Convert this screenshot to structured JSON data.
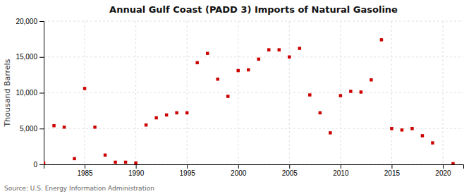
{
  "chart_data": {
    "type": "scatter",
    "title": "Annual Gulf Coast (PADD 3) Imports of Natural Gasoline",
    "ylabel": "Thousand Barrels",
    "source": "Source: U.S. Energy Information Administration",
    "color": "#cc0000",
    "marker": "square",
    "grid": true,
    "xlim": [
      1981,
      2022
    ],
    "xticks": [
      1985,
      1990,
      1995,
      2000,
      2005,
      2010,
      2015,
      2020
    ],
    "ylim": [
      0,
      20000
    ],
    "yticks": [
      {
        "value": 0,
        "label": "0"
      },
      {
        "value": 5000,
        "label": "5,000"
      },
      {
        "value": 10000,
        "label": "10,000"
      },
      {
        "value": 15000,
        "label": "15,000"
      },
      {
        "value": 20000,
        "label": "20,000"
      }
    ],
    "x": [
      1981,
      1982,
      1983,
      1984,
      1985,
      1986,
      1987,
      1988,
      1989,
      1990,
      1991,
      1992,
      1993,
      1994,
      1995,
      1996,
      1997,
      1998,
      1999,
      2000,
      2001,
      2002,
      2003,
      2004,
      2005,
      2006,
      2007,
      2008,
      2009,
      2010,
      2011,
      2012,
      2013,
      2014,
      2015,
      2016,
      2017,
      2018,
      2019,
      2021
    ],
    "values": [
      200,
      5400,
      5200,
      800,
      10600,
      5200,
      1300,
      300,
      300,
      200,
      5500,
      6500,
      6900,
      7200,
      7200,
      14200,
      15500,
      11900,
      9500,
      13100,
      13200,
      14700,
      16000,
      16000,
      15000,
      16200,
      9700,
      7200,
      4400,
      9600,
      10200,
      10100,
      11800,
      17400,
      5000,
      4800,
      5000,
      4000,
      3000,
      100
    ]
  }
}
